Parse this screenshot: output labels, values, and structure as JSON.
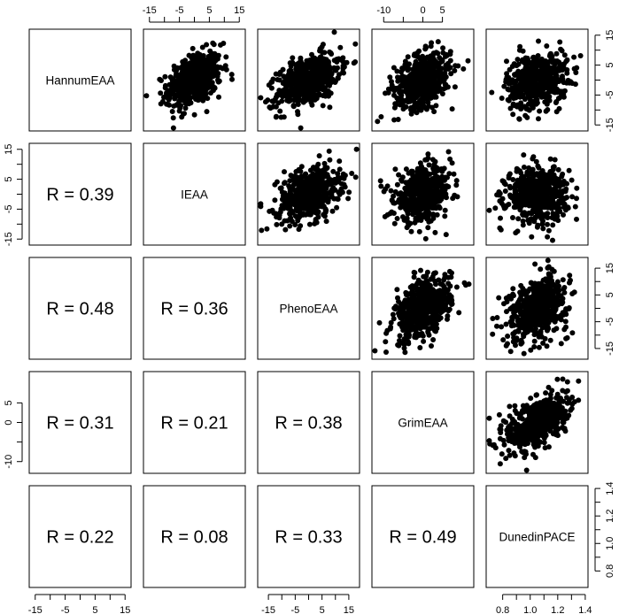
{
  "chart_data": {
    "type": "scatter",
    "variables": [
      {
        "name": "HannumEAA",
        "range": [
          -17,
          17
        ],
        "ticks": [
          -15,
          -10,
          -5,
          0,
          5,
          10,
          15
        ],
        "tick_labels": [
          "-15",
          "",
          "-5",
          "",
          "5",
          "",
          "15"
        ],
        "sd": 4.6
      },
      {
        "name": "IEAA",
        "range": [
          -17,
          17
        ],
        "ticks": [
          -15,
          -10,
          -5,
          0,
          5,
          10,
          15
        ],
        "tick_labels": [
          "-15",
          "",
          "-5",
          "",
          "5",
          "",
          "15"
        ],
        "sd": 4.5
      },
      {
        "name": "PhenoEAA",
        "range": [
          -19,
          19
        ],
        "ticks": [
          -15,
          -10,
          -5,
          0,
          5,
          10,
          15
        ],
        "tick_labels": [
          "-15",
          "",
          "-5",
          "",
          "5",
          "",
          "15"
        ],
        "sd": 5.8
      },
      {
        "name": "GrimEAA",
        "range": [
          -13,
          13
        ],
        "ticks": [
          -10,
          -5,
          0,
          5
        ],
        "tick_labels": [
          "-10",
          "",
          "0",
          "5"
        ],
        "sd": 3.6
      },
      {
        "name": "DunedinPACE",
        "range": [
          0.68,
          1.42
        ],
        "ticks": [
          0.8,
          0.9,
          1.0,
          1.1,
          1.2,
          1.3,
          1.4
        ],
        "tick_labels": [
          "0.8",
          "",
          "1.0",
          "",
          "1.2",
          "",
          "1.4"
        ],
        "sd": 0.11
      }
    ],
    "correlations": [
      {
        "row": "IEAA",
        "col": "HannumEAA",
        "r": 0.39,
        "label": "R = 0.39"
      },
      {
        "row": "PhenoEAA",
        "col": "HannumEAA",
        "r": 0.48,
        "label": "R = 0.48"
      },
      {
        "row": "PhenoEAA",
        "col": "IEAA",
        "r": 0.36,
        "label": "R = 0.36"
      },
      {
        "row": "GrimEAA",
        "col": "HannumEAA",
        "r": 0.31,
        "label": "R = 0.31"
      },
      {
        "row": "GrimEAA",
        "col": "IEAA",
        "r": 0.21,
        "label": "R = 0.21"
      },
      {
        "row": "GrimEAA",
        "col": "PhenoEAA",
        "r": 0.38,
        "label": "R = 0.38"
      },
      {
        "row": "DunedinPACE",
        "col": "HannumEAA",
        "r": 0.22,
        "label": "R = 0.22"
      },
      {
        "row": "DunedinPACE",
        "col": "IEAA",
        "r": 0.08,
        "label": "R = 0.08"
      },
      {
        "row": "DunedinPACE",
        "col": "PhenoEAA",
        "r": 0.33,
        "label": "R = 0.33"
      },
      {
        "row": "DunedinPACE",
        "col": "GrimEAA",
        "r": 0.49,
        "label": "R = 0.49"
      }
    ],
    "points_per_panel": 520
  }
}
